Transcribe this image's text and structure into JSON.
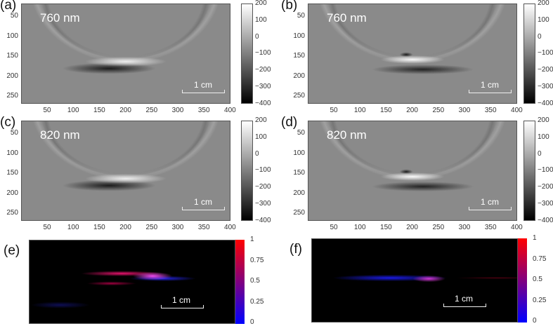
{
  "panels": [
    {
      "label": "(a)",
      "wavelength": "760 nm",
      "scale_bar": "1 cm"
    },
    {
      "label": "(b)",
      "wavelength": "760 nm",
      "scale_bar": "1 cm"
    },
    {
      "label": "(c)",
      "wavelength": "820 nm",
      "scale_bar": "1 cm"
    },
    {
      "label": "(d)",
      "wavelength": "820 nm",
      "scale_bar": "1 cm"
    },
    {
      "label": "(e)",
      "scale_bar": "1 cm"
    },
    {
      "label": "(f)",
      "scale_bar": "1 cm"
    }
  ],
  "x_ticks": [
    "50",
    "100",
    "150",
    "200",
    "250",
    "300",
    "350",
    "400"
  ],
  "y_ticks": [
    "50",
    "100",
    "150",
    "200",
    "250"
  ],
  "gray_colorbar_ticks": [
    "200",
    "100",
    "0",
    "−100",
    "−200",
    "−300",
    "−400"
  ],
  "color_colorbar_ticks": [
    "1",
    "0.75",
    "0.5",
    "0.25",
    "0"
  ],
  "colors": {
    "colormap_high": "#ff0000",
    "colormap_mid": "#800080",
    "colormap_low": "#0000ff"
  }
}
